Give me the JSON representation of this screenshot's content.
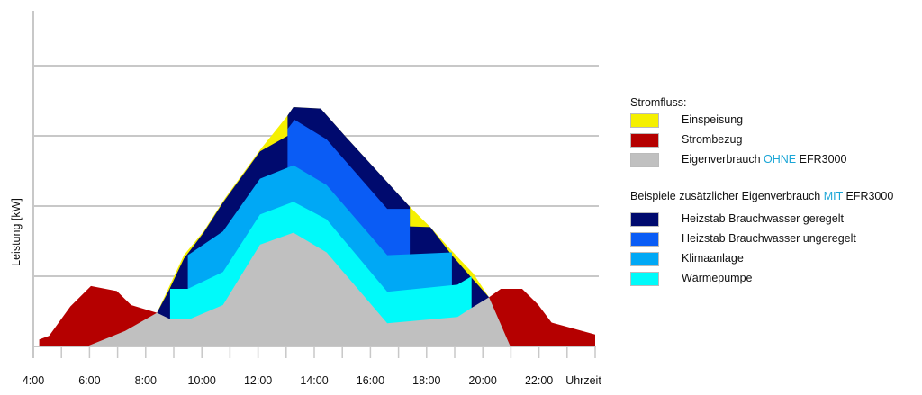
{
  "chart_data": {
    "type": "area",
    "title": "",
    "xlabel": "Uhrzeit",
    "ylabel": "Leistung [kW]",
    "xlim": [
      4,
      24
    ],
    "x_ticks": [
      "4:00",
      "6:00",
      "8:00",
      "10:00",
      "12:00",
      "14:00",
      "16:00",
      "18:00",
      "20:00",
      "22:00"
    ],
    "y_tick_labels_shown": false,
    "grid": "horizontal",
    "legend_position": "right",
    "series": [
      {
        "name": "Einspeisung",
        "color": "#f5f000",
        "points": [
          [
            8.4,
            0
          ],
          [
            8.4,
            0.48
          ],
          [
            8.8,
            0.82
          ],
          [
            9.36,
            1.3
          ],
          [
            10.06,
            1.64
          ],
          [
            10.82,
            2.11
          ],
          [
            12.07,
            2.8
          ],
          [
            13.05,
            3.29
          ],
          [
            13.26,
            3.41
          ],
          [
            14.23,
            3.39
          ],
          [
            15.07,
            3.01
          ],
          [
            17.4,
            1.99
          ],
          [
            18.13,
            1.7
          ],
          [
            18.9,
            1.36
          ],
          [
            19.66,
            1.04
          ],
          [
            20.22,
            0.7
          ],
          [
            20.22,
            0
          ]
        ]
      },
      {
        "name": "Heizstab Brauchwasser geregelt",
        "color": "#000a6e",
        "points": [
          [
            8.4,
            0
          ],
          [
            8.4,
            0.48
          ],
          [
            8.8,
            0.78
          ],
          [
            9.36,
            1.25
          ],
          [
            10.06,
            1.62
          ],
          [
            10.75,
            2.05
          ],
          [
            12.07,
            2.78
          ],
          [
            13.05,
            3.0
          ],
          [
            13.05,
            3.29
          ],
          [
            13.26,
            3.41
          ],
          [
            14.23,
            3.39
          ],
          [
            15.07,
            3.01
          ],
          [
            17.4,
            1.99
          ],
          [
            17.4,
            1.71
          ],
          [
            18.13,
            1.7
          ],
          [
            18.9,
            1.3
          ],
          [
            19.6,
            0.98
          ],
          [
            20.22,
            0.7
          ],
          [
            20.22,
            0
          ]
        ]
      },
      {
        "name": "Heizstab Brauchwasser ungeregelt",
        "color": "#0a5cf5",
        "points": [
          [
            13.05,
            0
          ],
          [
            13.05,
            3.1
          ],
          [
            13.3,
            3.23
          ],
          [
            14.44,
            2.95
          ],
          [
            16.6,
            1.96
          ],
          [
            17.4,
            1.96
          ],
          [
            17.4,
            0
          ]
        ]
      },
      {
        "name": "Klimaanlage",
        "color": "#00a8f5",
        "points": [
          [
            9.5,
            0
          ],
          [
            9.5,
            1.3
          ],
          [
            10.75,
            1.64
          ],
          [
            12.07,
            2.39
          ],
          [
            13.26,
            2.58
          ],
          [
            14.44,
            2.3
          ],
          [
            16.6,
            1.3
          ],
          [
            18.9,
            1.34
          ],
          [
            18.9,
            0
          ]
        ]
      },
      {
        "name": "Wärmepumpe",
        "color": "#00fafa",
        "points": [
          [
            8.87,
            0
          ],
          [
            8.87,
            0.82
          ],
          [
            9.5,
            0.82
          ],
          [
            10.75,
            1.06
          ],
          [
            12.07,
            1.88
          ],
          [
            13.26,
            2.06
          ],
          [
            14.44,
            1.81
          ],
          [
            16.6,
            0.78
          ],
          [
            19.1,
            0.88
          ],
          [
            19.6,
            1.0
          ],
          [
            19.6,
            0
          ]
        ]
      },
      {
        "name": "Strombezug",
        "color": "#b50000",
        "points": [
          [
            4.21,
            0
          ],
          [
            4.21,
            0.1
          ],
          [
            4.56,
            0.15
          ],
          [
            5.32,
            0.57
          ],
          [
            6.05,
            0.86
          ],
          [
            6.97,
            0.79
          ],
          [
            7.48,
            0.59
          ],
          [
            8.4,
            0.48
          ],
          [
            8.4,
            0
          ]
        ]
      },
      {
        "name": "Strombezug",
        "color": "#b50000",
        "points": [
          [
            20.22,
            0
          ],
          [
            20.22,
            0.7
          ],
          [
            20.64,
            0.82
          ],
          [
            21.4,
            0.82
          ],
          [
            21.96,
            0.6
          ],
          [
            22.45,
            0.34
          ],
          [
            24.0,
            0.17
          ],
          [
            24.0,
            0
          ]
        ]
      },
      {
        "name": "Eigenverbrauch OHNE EFR3000",
        "color": "#c0c0c0",
        "points": [
          [
            5.9,
            0
          ],
          [
            7.27,
            0.22
          ],
          [
            8.4,
            0.48
          ],
          [
            8.87,
            0.39
          ],
          [
            9.57,
            0.39
          ],
          [
            10.75,
            0.59
          ],
          [
            12.07,
            1.45
          ],
          [
            13.26,
            1.62
          ],
          [
            14.44,
            1.34
          ],
          [
            16.6,
            0.33
          ],
          [
            19.1,
            0.42
          ],
          [
            19.6,
            0.55
          ],
          [
            20.22,
            0.7
          ],
          [
            20.98,
            0
          ]
        ]
      }
    ]
  },
  "legend": {
    "group1_title": "Stromfluss:",
    "group1": [
      {
        "label": "Einspeisung",
        "color": "#f5f000"
      },
      {
        "label": "Strombezug",
        "color": "#b50000"
      },
      {
        "label_pre": "Eigenverbrauch ",
        "label_hl": "OHNE",
        "label_post": " EFR3000",
        "color": "#c0c0c0"
      }
    ],
    "group2_title_pre": "Beispiele zusätzlicher Eigenverbrauch ",
    "group2_title_hl": "MIT",
    "group2_title_post": " EFR3000",
    "group2": [
      {
        "label": "Heizstab Brauchwasser geregelt",
        "color": "#000a6e"
      },
      {
        "label": "Heizstab Brauchwasser ungeregelt",
        "color": "#0a5cf5"
      },
      {
        "label": "Klimaanlage",
        "color": "#00a8f5"
      },
      {
        "label": "Wärmepumpe",
        "color": "#00fafa"
      }
    ],
    "highlight_color": "#1aa5d6"
  }
}
